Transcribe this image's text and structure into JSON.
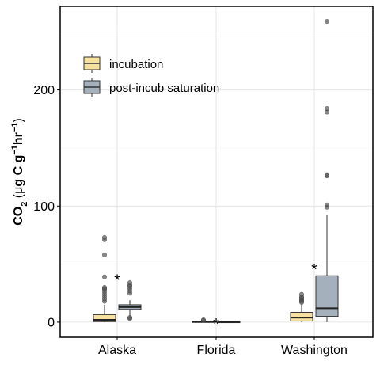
{
  "chart_data": {
    "type": "box",
    "ylabel": {
      "main": "CO",
      "sub": "2",
      "unit_prefix": " (",
      "mu": "μ",
      "unit_a": "g C g",
      "exp1": "−1",
      "unit_b": "hr",
      "exp2": "−1",
      "unit_close": ")"
    },
    "ylim": [
      -13,
      272
    ],
    "yticks": [
      0,
      100,
      200
    ],
    "grid": true,
    "legend_position": "top-left",
    "categories": [
      "Alaska",
      "Florida",
      "Washington"
    ],
    "series": [
      {
        "name": "incubation",
        "color": "#f7e1a0",
        "boxes": [
          {
            "category": "Alaska",
            "min": 0,
            "q1": 0.5,
            "median": 2,
            "q3": 6.5,
            "max": 15,
            "outliers": [
              18,
              20,
              22,
              24,
              26,
              28,
              29,
              30,
              39,
              58,
              71,
              73
            ]
          },
          {
            "category": "Florida",
            "min": 0,
            "q1": 0,
            "median": 0.3,
            "q3": 0.8,
            "max": 1,
            "outliers": [
              1.5,
              2
            ]
          },
          {
            "category": "Washington",
            "min": 0,
            "q1": 1,
            "median": 4,
            "q3": 8.5,
            "max": 15,
            "outliers": [
              17,
              18,
              19,
              20,
              21,
              22,
              24
            ]
          }
        ]
      },
      {
        "name": "post-incub saturation",
        "color": "#a4b0bc",
        "boxes": [
          {
            "category": "Alaska",
            "min": 5,
            "q1": 11,
            "median": 13,
            "q3": 15,
            "max": 19,
            "outliers": [
              3,
              4,
              25,
              27,
              29,
              31,
              32,
              34
            ]
          },
          {
            "category": "Florida",
            "min": 0,
            "q1": 0,
            "median": 0.2,
            "q3": 0.6,
            "max": 1,
            "outliers": []
          },
          {
            "category": "Washington",
            "min": 0,
            "q1": 5,
            "median": 12,
            "q3": 40,
            "max": 92,
            "outliers": [
              99,
              101,
              126,
              127,
              181,
              184,
              259
            ]
          }
        ]
      }
    ],
    "annotations": [
      {
        "text": "*",
        "category": "Alaska",
        "y": 40
      },
      {
        "text": "*",
        "category": "Florida",
        "y": 2
      },
      {
        "text": "*",
        "category": "Washington",
        "y": 49
      }
    ]
  }
}
